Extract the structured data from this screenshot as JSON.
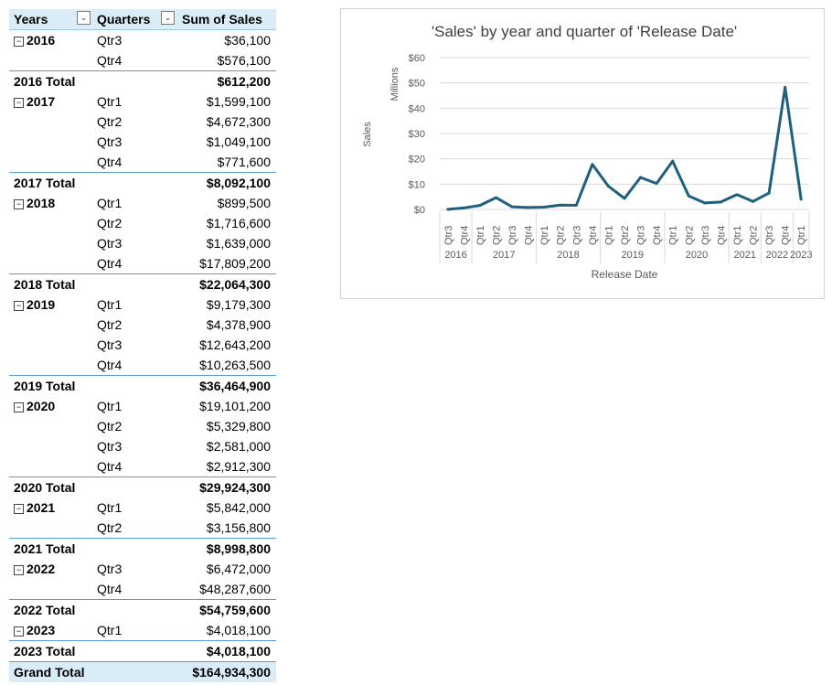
{
  "pivot": {
    "headers": {
      "years": "Years",
      "quarters": "Quarters",
      "sum": "Sum of Sales"
    },
    "rows": [
      {
        "type": "year",
        "year": "2016",
        "quarter": "Qtr3",
        "value": "$36,100"
      },
      {
        "type": "q",
        "quarter": "Qtr4",
        "value": "$576,100"
      },
      {
        "type": "total",
        "label": "2016 Total",
        "value": "$612,200"
      },
      {
        "type": "year",
        "year": "2017",
        "quarter": "Qtr1",
        "value": "$1,599,100"
      },
      {
        "type": "q",
        "quarter": "Qtr2",
        "value": "$4,672,300"
      },
      {
        "type": "q",
        "quarter": "Qtr3",
        "value": "$1,049,100"
      },
      {
        "type": "q",
        "quarter": "Qtr4",
        "value": "$771,600"
      },
      {
        "type": "total",
        "label": "2017 Total",
        "value": "$8,092,100"
      },
      {
        "type": "year",
        "year": "2018",
        "quarter": "Qtr1",
        "value": "$899,500"
      },
      {
        "type": "q",
        "quarter": "Qtr2",
        "value": "$1,716,600"
      },
      {
        "type": "q",
        "quarter": "Qtr3",
        "value": "$1,639,000"
      },
      {
        "type": "q",
        "quarter": "Qtr4",
        "value": "$17,809,200"
      },
      {
        "type": "total",
        "label": "2018 Total",
        "value": "$22,064,300"
      },
      {
        "type": "year",
        "year": "2019",
        "quarter": "Qtr1",
        "value": "$9,179,300"
      },
      {
        "type": "q",
        "quarter": "Qtr2",
        "value": "$4,378,900"
      },
      {
        "type": "q",
        "quarter": "Qtr3",
        "value": "$12,643,200"
      },
      {
        "type": "q",
        "quarter": "Qtr4",
        "value": "$10,263,500"
      },
      {
        "type": "total",
        "label": "2019 Total",
        "value": "$36,464,900"
      },
      {
        "type": "year",
        "year": "2020",
        "quarter": "Qtr1",
        "value": "$19,101,200"
      },
      {
        "type": "q",
        "quarter": "Qtr2",
        "value": "$5,329,800"
      },
      {
        "type": "q",
        "quarter": "Qtr3",
        "value": "$2,581,000"
      },
      {
        "type": "q",
        "quarter": "Qtr4",
        "value": "$2,912,300"
      },
      {
        "type": "total",
        "label": "2020 Total",
        "value": "$29,924,300"
      },
      {
        "type": "year",
        "year": "2021",
        "quarter": "Qtr1",
        "value": "$5,842,000"
      },
      {
        "type": "q",
        "quarter": "Qtr2",
        "value": "$3,156,800"
      },
      {
        "type": "total",
        "label": "2021 Total",
        "value": "$8,998,800"
      },
      {
        "type": "year",
        "year": "2022",
        "quarter": "Qtr3",
        "value": "$6,472,000"
      },
      {
        "type": "q",
        "quarter": "Qtr4",
        "value": "$48,287,600"
      },
      {
        "type": "total",
        "label": "2022 Total",
        "value": "$54,759,600"
      },
      {
        "type": "year",
        "year": "2023",
        "quarter": "Qtr1",
        "value": "$4,018,100"
      },
      {
        "type": "total",
        "label": "2023 Total",
        "value": "$4,018,100"
      },
      {
        "type": "grand",
        "label": "Grand Total",
        "value": "$164,934,300"
      }
    ]
  },
  "chart_data": {
    "type": "line",
    "title": "'Sales' by year and quarter of 'Release Date'",
    "xlabel": "Release Date",
    "ylabel": "Sales",
    "yunit_label": "Millions",
    "ylim": [
      0,
      60
    ],
    "yticks": [
      0,
      10,
      20,
      30,
      40,
      50,
      60
    ],
    "ytick_labels": [
      "$0",
      "$10",
      "$20",
      "$30",
      "$40",
      "$50",
      "$60"
    ],
    "quarters": [
      "Qtr3",
      "Qtr4",
      "Qtr1",
      "Qtr2",
      "Qtr3",
      "Qtr4",
      "Qtr1",
      "Qtr2",
      "Qtr3",
      "Qtr4",
      "Qtr1",
      "Qtr2",
      "Qtr3",
      "Qtr4",
      "Qtr1",
      "Qtr2",
      "Qtr3",
      "Qtr4",
      "Qtr1",
      "Qtr2",
      "Qtr3",
      "Qtr4",
      "Qtr1"
    ],
    "years": [
      {
        "label": "2016",
        "count": 2
      },
      {
        "label": "2017",
        "count": 4
      },
      {
        "label": "2018",
        "count": 4
      },
      {
        "label": "2019",
        "count": 4
      },
      {
        "label": "2020",
        "count": 4
      },
      {
        "label": "2021",
        "count": 2
      },
      {
        "label": "2022",
        "count": 2
      },
      {
        "label": "2023",
        "count": 1
      }
    ],
    "series": [
      {
        "name": "Sales",
        "values": [
          0.0361,
          0.5761,
          1.5991,
          4.6723,
          1.0491,
          0.7716,
          0.8995,
          1.7166,
          1.639,
          17.8092,
          9.1793,
          4.3789,
          12.6432,
          10.2635,
          19.1012,
          5.3298,
          2.581,
          2.9123,
          5.842,
          3.1568,
          6.472,
          48.2876,
          4.0181
        ]
      }
    ],
    "color": "#1f5f7f",
    "grid": true
  }
}
